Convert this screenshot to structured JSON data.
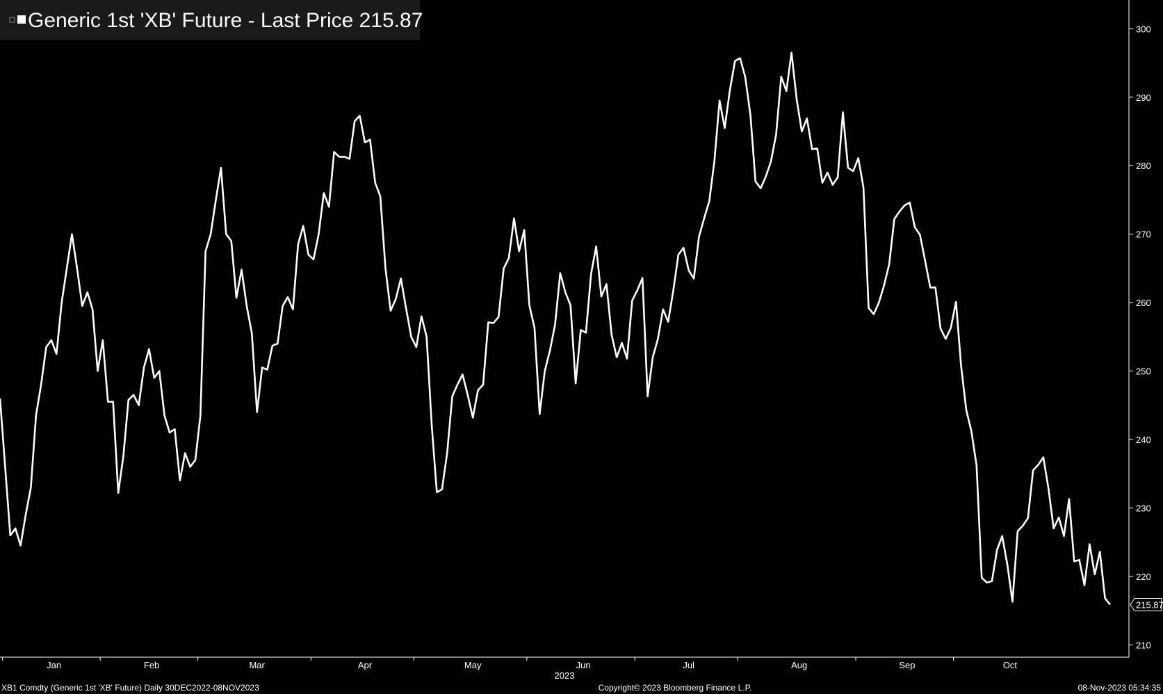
{
  "chart_data": {
    "type": "line",
    "title": "Generic 1st 'XB' Future - Last Price 215.87",
    "color": "#ffffff",
    "categories": [
      null,
      "Jan",
      null,
      null,
      null,
      null,
      null,
      null,
      null,
      null,
      null,
      null,
      null,
      null,
      null,
      null,
      null,
      null,
      null,
      null,
      "Feb",
      null,
      null,
      null,
      null,
      null,
      null,
      null,
      null,
      null,
      null,
      null,
      null,
      null,
      null,
      null,
      null,
      null,
      null,
      "Mar",
      null,
      null,
      null,
      null,
      null,
      null,
      null,
      null,
      null,
      null,
      null,
      null,
      null,
      null,
      null,
      null,
      null,
      null,
      null,
      null,
      null,
      "Apr",
      null,
      null,
      null,
      null,
      null,
      null,
      null,
      null,
      null,
      null,
      null,
      null,
      null,
      null,
      null,
      null,
      null,
      null,
      null,
      "May",
      null,
      null,
      null,
      null,
      null,
      null,
      null,
      null,
      null,
      null,
      null,
      null,
      null,
      null,
      null,
      null,
      null,
      null,
      null,
      null,
      null,
      "Jun",
      null,
      null,
      null,
      null,
      null,
      null,
      null,
      null,
      null,
      null,
      null,
      null,
      null,
      null,
      null,
      null,
      null,
      null,
      null,
      null,
      "Jul",
      null,
      null,
      null,
      null,
      null,
      null,
      null,
      null,
      null,
      null,
      null,
      null,
      null,
      null,
      null,
      null,
      null,
      null,
      null,
      "Aug",
      null,
      null,
      null,
      null,
      null,
      null,
      null,
      null,
      null,
      null,
      null,
      null,
      null,
      null,
      null,
      null,
      null,
      null,
      null,
      null,
      null,
      null,
      "Sep",
      null,
      null,
      null,
      null,
      null,
      null,
      null,
      null,
      null,
      null,
      null,
      null,
      null,
      null,
      null,
      null,
      null,
      null,
      "Oct",
      null,
      null,
      null,
      null,
      null,
      null,
      null,
      null,
      null,
      null,
      null,
      null,
      null,
      null,
      null,
      null,
      null,
      null,
      null,
      null,
      null,
      null,
      null,
      null,
      null,
      null,
      null,
      null,
      null,
      null
    ],
    "values": [
      246,
      236,
      226,
      227,
      224.5,
      229,
      233,
      243.5,
      248,
      253.5,
      254.5,
      252.5,
      260,
      265,
      270,
      265,
      259.5,
      261.5,
      259,
      250,
      254.5,
      245.5,
      245.5,
      232.2,
      237.5,
      245.8,
      246.5,
      245,
      250.5,
      253.2,
      249,
      250,
      243.5,
      241,
      241.5,
      234,
      238,
      236,
      237,
      243.5,
      267.5,
      270,
      275,
      279.7,
      270,
      269,
      260.7,
      264.8,
      259.5,
      255.5,
      244,
      250.5,
      250.2,
      253.7,
      254,
      259.5,
      260.8,
      259,
      268.5,
      271.2,
      267,
      266.3,
      270,
      276,
      274,
      282,
      281.3,
      281.3,
      281,
      286.5,
      287.3,
      283.4,
      283.8,
      277.5,
      275.5,
      265,
      258.8,
      260.5,
      263.5,
      259.2,
      255,
      253.5,
      258,
      255,
      242,
      232.3,
      232.7,
      238,
      246.3,
      248,
      249.5,
      246.5,
      243.2,
      247.2,
      248,
      257.1,
      257,
      257.9,
      265,
      266.5,
      272.3,
      267.5,
      270.6,
      259.6,
      256.3,
      243.7,
      250,
      253,
      256.8,
      264.3,
      261.5,
      259.6,
      248.2,
      256,
      255.6,
      264.2,
      268.2,
      260.9,
      262.7,
      255.3,
      252,
      254.1,
      251.8,
      260.3,
      261.8,
      263.6,
      246.3,
      252,
      254.7,
      259,
      257.2,
      261.8,
      267,
      268,
      264.7,
      263.5,
      269.6,
      272.3,
      274.8,
      280.7,
      289.5,
      285.5,
      291,
      295.3,
      295.7,
      292.9,
      287.4,
      277.7,
      276.7,
      278.4,
      280.6,
      284.5,
      293,
      290.9,
      296.5,
      289.7,
      285,
      286.9,
      282.4,
      282.5,
      277.5,
      279,
      277.2,
      278.3,
      287.8,
      279.7,
      279.2,
      281.1,
      276.8,
      259.2,
      258.3,
      260,
      262.5,
      265.6,
      272.2,
      273.3,
      274.2,
      274.6,
      271,
      269.9,
      266.1,
      262.2,
      262.2,
      256.2,
      254.7,
      256.3,
      260.1,
      250.7,
      244.3,
      241.2,
      236.2,
      219.8,
      219.1,
      219.3,
      223.9,
      225.9,
      221.7,
      216.3,
      226.6,
      227.4,
      228.5,
      235.5,
      236.3,
      237.4,
      232.8,
      227,
      228.6,
      225.9,
      231.3,
      222.2,
      222.4,
      218.7,
      224.7,
      220.3,
      223.6,
      216.8,
      215.87
    ],
    "value_labels_last": "215.87",
    "ylim": [
      208.2,
      304.2
    ],
    "yticks": [
      210,
      220,
      230,
      240,
      250,
      260,
      270,
      280,
      290,
      300
    ],
    "xlabel": "2023",
    "footer_left": "XB1 Comdty (Generic 1st 'XB' Future)  Daily 30DEC2022-08NOV2023",
    "footer_center": "Copyright© 2023 Bloomberg Finance L.P.",
    "footer_right": "08-Nov-2023 05:34:35"
  }
}
